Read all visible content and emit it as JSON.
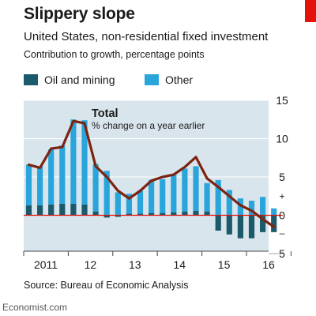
{
  "header": {
    "title": "Slippery slope",
    "subtitle": "United States, non-residential fixed investment",
    "description": "Contribution to growth, percentage points"
  },
  "legend": [
    {
      "label": "Oil and mining",
      "color": "#1b5a6b"
    },
    {
      "label": "Other",
      "color": "#2aa5dc"
    }
  ],
  "annotation": {
    "total_label": "Total",
    "total_sub": "% change on a year earlier"
  },
  "source": "Source: Bureau of Economic Analysis",
  "footer": "Economist.com",
  "colors": {
    "accent_red": "#e3120b",
    "line": "#7b2412",
    "chart_bg": "#d9e5ec"
  },
  "chart_data": {
    "type": "bar",
    "stacked": true,
    "x_tick_labels": [
      "2011",
      "12",
      "13",
      "14",
      "15",
      "16"
    ],
    "y_tick_labels": [
      "15",
      "10",
      "5",
      "+",
      "0",
      "–",
      "5"
    ],
    "ylim": [
      -5,
      15
    ],
    "y_position": "right",
    "grid": true,
    "categories": [
      "2010 Q4",
      "2011 Q1",
      "2011 Q2",
      "2011 Q3",
      "2011 Q4",
      "2012 Q1",
      "2012 Q2",
      "2012 Q3",
      "2012 Q4",
      "2013 Q1",
      "2013 Q2",
      "2013 Q3",
      "2013 Q4",
      "2014 Q1",
      "2014 Q2",
      "2014 Q3",
      "2014 Q4",
      "2015 Q1",
      "2015 Q2",
      "2015 Q3",
      "2015 Q4",
      "2016 Q1",
      "2016 Q2"
    ],
    "series": [
      {
        "name": "Oil and mining",
        "values": [
          1.3,
          1.3,
          1.4,
          1.5,
          1.5,
          1.4,
          0.5,
          -0.3,
          -0.2,
          0.2,
          0.2,
          0.3,
          0.3,
          0.4,
          0.5,
          0.6,
          0.5,
          -2.0,
          -2.5,
          -3.0,
          -3.0,
          -2.2,
          -2.2
        ]
      },
      {
        "name": "Other",
        "values": [
          5.3,
          5.1,
          7.2,
          7.6,
          11.0,
          11.0,
          6.2,
          5.8,
          3.0,
          2.6,
          3.0,
          4.3,
          4.4,
          4.9,
          5.6,
          5.8,
          3.7,
          4.6,
          3.3,
          2.2,
          1.9,
          2.4,
          0.9
        ]
      }
    ],
    "line": {
      "name": "Total",
      "values": [
        6.6,
        6.2,
        8.7,
        8.9,
        12.3,
        12.0,
        6.4,
        5.0,
        3.2,
        2.2,
        3.2,
        4.5,
        5.0,
        5.3,
        6.3,
        7.6,
        4.8,
        3.7,
        2.5,
        1.3,
        0.6,
        -0.5,
        -1.5
      ]
    }
  }
}
